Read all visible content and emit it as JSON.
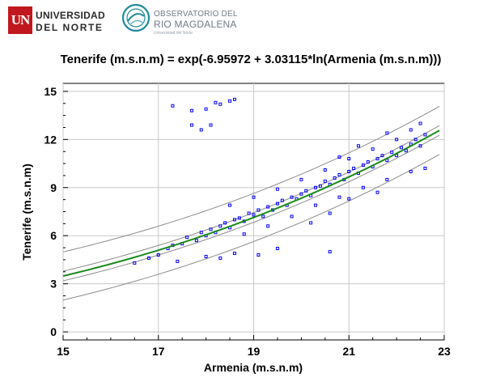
{
  "header": {
    "university": {
      "mark": "UN",
      "line1": "UNIVERSIDAD",
      "line2": "DEL NORTE"
    },
    "observatory": {
      "line1": "OBSERVATORIO DEL",
      "line2": "RIO MAGDALENA",
      "line3": "Universidad del Norte"
    }
  },
  "chart_data": {
    "type": "scatter",
    "title": "Tenerife (m.s.n.m) = exp(-6.95972 + 3.03115*ln(Armenia (m.s.n.m)))",
    "xlabel": "Armenia (m.s.n.m)",
    "ylabel": "Tenerife (m.s.n.m)",
    "xlim": [
      15,
      23
    ],
    "ylim": [
      -0.5,
      15.5
    ],
    "x_ticks": [
      15,
      17,
      19,
      21,
      23
    ],
    "y_ticks": [
      0,
      3,
      6,
      9,
      12,
      15
    ],
    "grid": true,
    "fit": {
      "type": "curve",
      "a": -6.95972,
      "b": 3.03115,
      "color": "#1a8a1a",
      "x_range": [
        15,
        22.9
      ]
    },
    "bands": {
      "inner_offset": 0.3,
      "outer_offset": 1.5,
      "color": "#8c8c8c"
    },
    "series": [
      {
        "marker": "open-square",
        "color": "#0000ff",
        "points": [
          [
            16.5,
            4.3
          ],
          [
            16.8,
            4.6
          ],
          [
            17.0,
            4.8
          ],
          [
            17.2,
            5.2
          ],
          [
            17.3,
            5.4
          ],
          [
            17.5,
            5.5
          ],
          [
            17.6,
            5.9
          ],
          [
            17.8,
            5.7
          ],
          [
            17.9,
            6.2
          ],
          [
            18.0,
            6.0
          ],
          [
            18.1,
            6.4
          ],
          [
            18.2,
            6.2
          ],
          [
            18.3,
            6.6
          ],
          [
            18.4,
            6.8
          ],
          [
            18.5,
            6.5
          ],
          [
            18.6,
            7.0
          ],
          [
            18.7,
            7.1
          ],
          [
            18.8,
            6.9
          ],
          [
            18.9,
            7.4
          ],
          [
            19.0,
            7.3
          ],
          [
            19.1,
            7.6
          ],
          [
            19.2,
            7.2
          ],
          [
            19.3,
            7.8
          ],
          [
            19.4,
            7.6
          ],
          [
            19.5,
            8.0
          ],
          [
            19.6,
            8.2
          ],
          [
            19.7,
            7.9
          ],
          [
            19.8,
            8.4
          ],
          [
            19.9,
            8.3
          ],
          [
            20.0,
            8.6
          ],
          [
            20.1,
            8.8
          ],
          [
            20.2,
            8.5
          ],
          [
            20.3,
            9.0
          ],
          [
            20.4,
            9.1
          ],
          [
            20.5,
            9.4
          ],
          [
            20.6,
            9.2
          ],
          [
            20.7,
            9.6
          ],
          [
            20.8,
            9.8
          ],
          [
            20.9,
            9.5
          ],
          [
            21.0,
            10.0
          ],
          [
            21.1,
            10.2
          ],
          [
            21.2,
            9.9
          ],
          [
            21.3,
            10.4
          ],
          [
            21.4,
            10.6
          ],
          [
            21.5,
            10.3
          ],
          [
            21.6,
            10.8
          ],
          [
            21.7,
            11.0
          ],
          [
            21.8,
            10.7
          ],
          [
            21.9,
            11.2
          ],
          [
            22.0,
            11.0
          ],
          [
            22.1,
            11.5
          ],
          [
            22.2,
            11.3
          ],
          [
            22.3,
            11.7
          ],
          [
            22.4,
            12.0
          ],
          [
            22.5,
            11.6
          ],
          [
            22.6,
            12.3
          ],
          [
            18.5,
            7.9
          ],
          [
            19.0,
            8.4
          ],
          [
            19.5,
            8.9
          ],
          [
            20.0,
            9.5
          ],
          [
            20.5,
            10.1
          ],
          [
            21.0,
            10.8
          ],
          [
            21.5,
            11.4
          ],
          [
            22.0,
            12.0
          ],
          [
            22.3,
            12.6
          ],
          [
            22.5,
            13.0
          ],
          [
            21.8,
            12.4
          ],
          [
            21.2,
            11.6
          ],
          [
            20.8,
            10.9
          ],
          [
            18.8,
            6.1
          ],
          [
            19.3,
            6.6
          ],
          [
            19.8,
            7.2
          ],
          [
            20.3,
            7.9
          ],
          [
            20.8,
            8.4
          ],
          [
            21.3,
            9.0
          ],
          [
            21.8,
            9.5
          ],
          [
            22.3,
            10.0
          ],
          [
            22.6,
            10.2
          ],
          [
            21.6,
            8.7
          ],
          [
            21.0,
            8.3
          ],
          [
            20.6,
            7.4
          ],
          [
            18.0,
            4.7
          ],
          [
            18.3,
            4.6
          ],
          [
            18.6,
            4.9
          ],
          [
            19.1,
            4.8
          ],
          [
            19.5,
            5.2
          ],
          [
            20.6,
            5.0
          ],
          [
            20.2,
            6.8
          ],
          [
            17.4,
            4.4
          ],
          [
            17.3,
            14.1
          ],
          [
            17.7,
            13.8
          ],
          [
            18.0,
            13.9
          ],
          [
            17.9,
            12.6
          ],
          [
            18.3,
            14.2
          ],
          [
            18.5,
            14.4
          ],
          [
            18.6,
            14.5
          ],
          [
            18.2,
            14.3
          ],
          [
            17.7,
            12.9
          ],
          [
            18.1,
            12.9
          ]
        ]
      }
    ]
  }
}
